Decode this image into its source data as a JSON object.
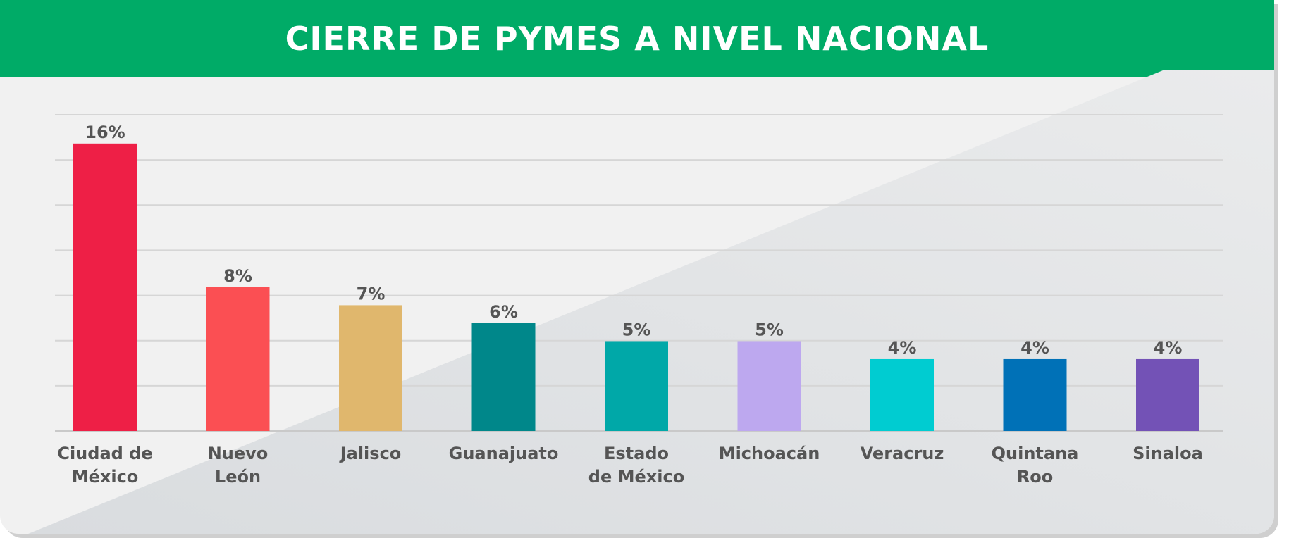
{
  "chart_data": {
    "type": "bar",
    "title": "CIERRE DE PYMES A NIVEL NACIONAL",
    "categories": [
      [
        "Ciudad de",
        "México"
      ],
      [
        "Nuevo",
        "León"
      ],
      [
        "Jalisco"
      ],
      [
        "Guanajuato"
      ],
      [
        "Estado",
        "de México"
      ],
      [
        "Michoacán"
      ],
      [
        "Veracruz"
      ],
      [
        "Quintana",
        "Roo"
      ],
      [
        "Sinaloa"
      ]
    ],
    "values": [
      16,
      8,
      7,
      6,
      5,
      5,
      4,
      4,
      4
    ],
    "value_labels": [
      "16%",
      "8%",
      "7%",
      "6%",
      "5%",
      "5%",
      "4%",
      "4%",
      "4%"
    ],
    "colors": [
      "#ee1f46",
      "#fb4f53",
      "#e0b76d",
      "#00878a",
      "#00a8a8",
      "#bda8ef",
      "#00ccd1",
      "#0071b7",
      "#7352b6"
    ],
    "ylim": [
      0,
      17.6
    ],
    "grid": true,
    "header_color": "#00ab67"
  }
}
